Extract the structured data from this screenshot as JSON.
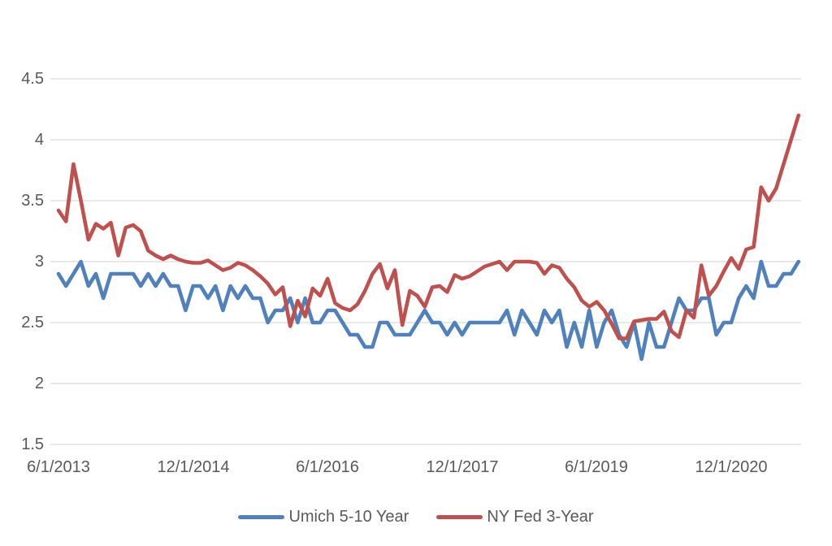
{
  "chart": {
    "background": "#FFFFFF",
    "grid_color": "#D9D9D9",
    "axis_text_color": "#595959"
  },
  "chart_data": {
    "type": "line",
    "title": "",
    "grid": "horizontal",
    "x_axis": {
      "tick_labels": [
        "6/1/2013",
        "12/1/2014",
        "6/1/2016",
        "12/1/2017",
        "6/1/2019",
        "12/1/2020"
      ],
      "tick_point_indices": [
        0,
        18,
        36,
        54,
        72,
        90
      ],
      "start": "6/1/2013",
      "end": "9/1/2021",
      "frequency": "monthly",
      "num_points": 100
    },
    "y_axis": {
      "tick_labels": [
        "4.5",
        "4",
        "3.5",
        "3",
        "2.5",
        "2",
        "1.5"
      ],
      "min": 1.5,
      "max": 4.5,
      "step": 0.5
    },
    "legend": {
      "position": "bottom",
      "entries": [
        "Umich 5-10 Year",
        "NY Fed 3-Year"
      ]
    },
    "series": [
      {
        "name": "Umich 5-10 Year",
        "color": "#4F81BD",
        "values": [
          2.9,
          2.8,
          2.9,
          3.0,
          2.8,
          2.9,
          2.7,
          2.9,
          2.9,
          2.9,
          2.9,
          2.8,
          2.9,
          2.8,
          2.9,
          2.8,
          2.8,
          2.6,
          2.8,
          2.8,
          2.7,
          2.8,
          2.6,
          2.8,
          2.7,
          2.8,
          2.7,
          2.7,
          2.5,
          2.6,
          2.6,
          2.7,
          2.5,
          2.7,
          2.5,
          2.5,
          2.6,
          2.6,
          2.5,
          2.4,
          2.4,
          2.3,
          2.3,
          2.5,
          2.5,
          2.4,
          2.4,
          2.4,
          2.5,
          2.6,
          2.5,
          2.5,
          2.4,
          2.5,
          2.4,
          2.5,
          2.5,
          2.5,
          2.5,
          2.5,
          2.6,
          2.4,
          2.6,
          2.5,
          2.4,
          2.6,
          2.5,
          2.6,
          2.3,
          2.5,
          2.3,
          2.6,
          2.3,
          2.5,
          2.6,
          2.4,
          2.3,
          2.5,
          2.2,
          2.5,
          2.3,
          2.3,
          2.5,
          2.7,
          2.6,
          2.6,
          2.7,
          2.7,
          2.4,
          2.5,
          2.5,
          2.7,
          2.8,
          2.7,
          3.0,
          2.8,
          2.8,
          2.9,
          2.9,
          3.0
        ]
      },
      {
        "name": "NY Fed 3-Year",
        "color": "#C0504D",
        "values": [
          3.42,
          3.33,
          3.8,
          3.5,
          3.18,
          3.31,
          3.27,
          3.32,
          3.05,
          3.28,
          3.3,
          3.25,
          3.09,
          3.05,
          3.02,
          3.05,
          3.02,
          3.0,
          2.99,
          2.99,
          3.01,
          2.97,
          2.93,
          2.95,
          2.99,
          2.97,
          2.93,
          2.88,
          2.82,
          2.73,
          2.79,
          2.47,
          2.68,
          2.55,
          2.78,
          2.72,
          2.86,
          2.66,
          2.62,
          2.6,
          2.65,
          2.76,
          2.9,
          2.98,
          2.78,
          2.93,
          2.48,
          2.76,
          2.72,
          2.63,
          2.79,
          2.8,
          2.75,
          2.89,
          2.86,
          2.88,
          2.92,
          2.96,
          2.98,
          3.0,
          2.93,
          3.0,
          3.0,
          3.0,
          2.99,
          2.9,
          2.97,
          2.95,
          2.86,
          2.79,
          2.68,
          2.63,
          2.67,
          2.6,
          2.49,
          2.37,
          2.37,
          2.51,
          2.52,
          2.53,
          2.53,
          2.59,
          2.43,
          2.38,
          2.6,
          2.54,
          2.97,
          2.72,
          2.8,
          2.92,
          3.03,
          2.94,
          3.1,
          3.12,
          3.61,
          3.5,
          3.6,
          3.8,
          4.0,
          4.2
        ]
      }
    ]
  }
}
